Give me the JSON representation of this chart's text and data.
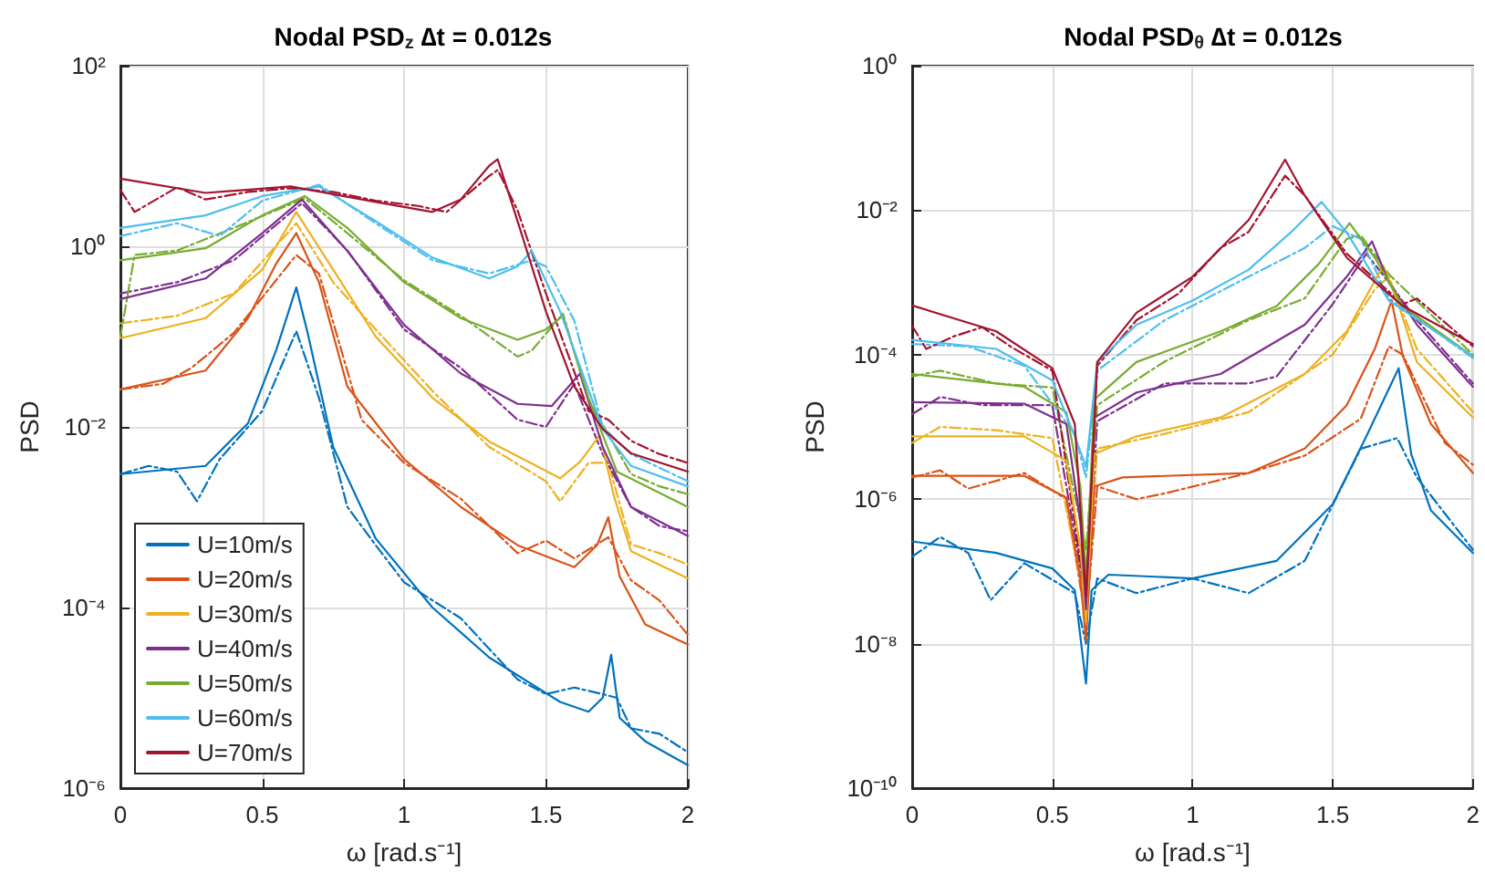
{
  "chart_data": [
    {
      "type": "line",
      "title": "Nodal PSD$_{z}$ ∆t = 0.012s",
      "xlabel": "ω [rad.s⁻¹]",
      "ylabel": "PSD",
      "log": "y",
      "grid": true,
      "legend": "bottom left",
      "marker": "none",
      "xlim": [
        0,
        2
      ],
      "xticks": [
        0,
        0.5,
        1,
        1.5,
        2
      ],
      "ylim": [
        1e-06,
        100
      ],
      "yticks": [
        {
          "value": 1e-06,
          "label": "10⁻⁶"
        },
        {
          "value": 0.0001,
          "label": "10⁻⁴"
        },
        {
          "value": 0.01,
          "label": "10⁻²"
        },
        {
          "value": 1,
          "label": "10⁰"
        },
        {
          "value": 100,
          "label": "10²"
        }
      ],
      "series": [
        {
          "name": "U=10m/s",
          "color": "#0072bd",
          "line_style": "solid",
          "x": [
            0,
            0.3,
            0.45,
            0.55,
            0.62,
            0.66,
            0.75,
            0.9,
            1.1,
            1.3,
            1.55,
            1.65,
            1.7,
            1.73,
            1.76,
            1.85,
            2
          ],
          "values": [
            0.003,
            0.0037,
            0.011,
            0.072,
            0.35,
            0.11,
            0.006,
            0.00058,
            0.0001,
            2.8e-05,
            9e-06,
            7e-06,
            1e-05,
            3e-05,
            6e-06,
            3.3e-06,
            1.8e-06
          ]
        },
        {
          "name": "U=20m/s",
          "color": "#d95319",
          "line_style": "solid",
          "x": [
            0,
            0.3,
            0.45,
            0.55,
            0.62,
            0.7,
            0.8,
            1.0,
            1.2,
            1.4,
            1.6,
            1.68,
            1.72,
            1.76,
            1.85,
            2
          ],
          "values": [
            0.026,
            0.042,
            0.16,
            0.65,
            1.4,
            0.4,
            0.028,
            0.0044,
            0.0013,
            0.00049,
            0.00028,
            0.00049,
            0.001,
            0.00022,
            6.5e-05,
            3.9e-05
          ]
        },
        {
          "name": "U=30m/s",
          "color": "#edb120",
          "line_style": "solid",
          "x": [
            0,
            0.3,
            0.5,
            0.62,
            0.75,
            0.9,
            1.1,
            1.3,
            1.55,
            1.62,
            1.69,
            1.74,
            1.8,
            2
          ],
          "values": [
            0.096,
            0.16,
            0.55,
            2.4,
            0.55,
            0.1,
            0.021,
            0.0069,
            0.0027,
            0.0041,
            0.0081,
            0.0017,
            0.00042,
            0.00021
          ]
        },
        {
          "name": "U=40m/s",
          "color": "#7e2f8e",
          "line_style": "solid",
          "x": [
            0,
            0.3,
            0.5,
            0.64,
            0.8,
            1.0,
            1.2,
            1.4,
            1.52,
            1.62,
            1.7,
            1.8,
            2
          ],
          "values": [
            0.26,
            0.44,
            1.4,
            3.3,
            0.89,
            0.135,
            0.039,
            0.018,
            0.017,
            0.039,
            0.006,
            0.0013,
            0.00062
          ]
        },
        {
          "name": "U=50m/s",
          "color": "#77ac30",
          "line_style": "solid",
          "x": [
            0,
            0.3,
            0.5,
            0.65,
            0.8,
            1.0,
            1.2,
            1.4,
            1.5,
            1.56,
            1.65,
            1.75,
            2
          ],
          "values": [
            0.7,
            0.95,
            2.2,
            3.6,
            1.6,
            0.4,
            0.16,
            0.092,
            0.12,
            0.17,
            0.021,
            0.0032,
            0.0013
          ]
        },
        {
          "name": "U=60m/s",
          "color": "#4dbeee",
          "line_style": "solid",
          "x": [
            0,
            0.3,
            0.5,
            0.7,
            0.9,
            1.1,
            1.3,
            1.4,
            1.45,
            1.55,
            1.7,
            1.8,
            2
          ],
          "values": [
            1.6,
            2.2,
            3.6,
            4.6,
            1.9,
            0.75,
            0.44,
            0.6,
            0.89,
            0.19,
            0.0095,
            0.0037,
            0.0022
          ]
        },
        {
          "name": "U=70m/s",
          "color": "#a2142f",
          "line_style": "solid",
          "x": [
            0,
            0.3,
            0.6,
            0.9,
            1.1,
            1.2,
            1.3,
            1.33,
            1.4,
            1.5,
            1.6,
            1.7,
            1.8,
            2
          ],
          "values": [
            5.6,
            3.9,
            4.6,
            3.1,
            2.4,
            3.3,
            7.8,
            9.2,
            1.9,
            0.19,
            0.028,
            0.0095,
            0.0051,
            0.0032
          ]
        },
        {
          "color": "#0072bd",
          "line_style": "dashed",
          "x": [
            0,
            0.1,
            0.2,
            0.27,
            0.35,
            0.5,
            0.62,
            0.7,
            0.8,
            0.9,
            1.0,
            1.2,
            1.4,
            1.5,
            1.6,
            1.7,
            1.75,
            1.8,
            1.9,
            2
          ],
          "values": [
            0.003,
            0.0037,
            0.0032,
            0.0015,
            0.0044,
            0.015,
            0.115,
            0.021,
            0.0013,
            0.00049,
            0.00019,
            7.6e-05,
            1.6e-05,
            1.1e-05,
            1.3e-05,
            1.1e-05,
            1e-05,
            4.6e-06,
            4e-06,
            2.5e-06
          ]
        },
        {
          "color": "#d95319",
          "line_style": "dashed",
          "x": [
            0,
            0.15,
            0.25,
            0.4,
            0.62,
            0.7,
            0.85,
            1.0,
            1.2,
            1.4,
            1.5,
            1.6,
            1.72,
            1.8,
            1.9,
            2
          ],
          "values": [
            0.026,
            0.03,
            0.045,
            0.11,
            0.8,
            0.5,
            0.012,
            0.004,
            0.0016,
            0.0004,
            0.00055,
            0.00035,
            0.0006,
            0.0002,
            0.00012,
            5e-05
          ]
        },
        {
          "color": "#edb120",
          "line_style": "dashed",
          "x": [
            0,
            0.2,
            0.4,
            0.62,
            0.75,
            0.9,
            1.1,
            1.3,
            1.5,
            1.55,
            1.65,
            1.72,
            1.8,
            1.9,
            2
          ],
          "values": [
            0.14,
            0.17,
            0.3,
            1.8,
            0.4,
            0.12,
            0.025,
            0.006,
            0.0025,
            0.0015,
            0.004,
            0.004,
            0.0005,
            0.0004,
            0.0003
          ]
        },
        {
          "color": "#7e2f8e",
          "line_style": "dashed",
          "x": [
            0,
            0.2,
            0.4,
            0.64,
            0.8,
            1.0,
            1.2,
            1.4,
            1.5,
            1.6,
            1.7,
            1.8,
            1.9,
            2
          ],
          "values": [
            0.3,
            0.4,
            0.7,
            3.0,
            0.9,
            0.12,
            0.045,
            0.012,
            0.01,
            0.03,
            0.005,
            0.0013,
            0.0008,
            0.0007
          ]
        },
        {
          "color": "#77ac30",
          "line_style": "dashed",
          "x": [
            0,
            0.05,
            0.2,
            0.4,
            0.65,
            0.8,
            1.0,
            1.2,
            1.4,
            1.45,
            1.56,
            1.65,
            1.8,
            1.9,
            2
          ],
          "values": [
            0.1,
            0.8,
            0.9,
            1.6,
            3.4,
            1.4,
            0.42,
            0.17,
            0.06,
            0.07,
            0.18,
            0.02,
            0.003,
            0.0022,
            0.0018
          ]
        },
        {
          "color": "#4dbeee",
          "line_style": "dashed",
          "x": [
            0,
            0.2,
            0.35,
            0.5,
            0.7,
            0.9,
            1.1,
            1.3,
            1.45,
            1.5,
            1.6,
            1.7,
            1.8,
            2
          ],
          "values": [
            1.3,
            1.8,
            1.3,
            3.2,
            4.8,
            1.8,
            0.7,
            0.5,
            0.7,
            0.6,
            0.15,
            0.01,
            0.005,
            0.0025
          ]
        },
        {
          "color": "#a2142f",
          "line_style": "dashed",
          "x": [
            0,
            0.05,
            0.2,
            0.3,
            0.45,
            0.6,
            0.75,
            0.9,
            1.05,
            1.15,
            1.3,
            1.33,
            1.4,
            1.5,
            1.65,
            1.72,
            1.8,
            1.9,
            2
          ],
          "values": [
            4.2,
            2.4,
            4.5,
            3.3,
            4.0,
            4.4,
            4.0,
            3.2,
            2.8,
            2.4,
            6.0,
            7.0,
            2.5,
            0.3,
            0.015,
            0.012,
            0.007,
            0.005,
            0.004
          ]
        }
      ]
    },
    {
      "type": "line",
      "title": "Nodal PSD$_{θ}$ ∆t = 0.012s",
      "xlabel": "ω [rad.s⁻¹]",
      "ylabel": "PSD",
      "log": "y",
      "grid": true,
      "marker": "none",
      "xlim": [
        0,
        2
      ],
      "xticks": [
        0,
        0.5,
        1,
        1.5,
        2
      ],
      "ylim": [
        1e-10,
        1
      ],
      "yticks": [
        {
          "value": 1e-10,
          "label": "10⁻¹⁰"
        },
        {
          "value": 1e-08,
          "label": "10⁻⁸"
        },
        {
          "value": 1e-06,
          "label": "10⁻⁶"
        },
        {
          "value": 0.0001,
          "label": "10⁻⁴"
        },
        {
          "value": 0.01,
          "label": "10⁻²"
        },
        {
          "value": 1,
          "label": "10⁰"
        }
      ],
      "series": [
        {
          "color": "#0072bd",
          "line_style": "solid",
          "x": [
            0,
            0.3,
            0.5,
            0.58,
            0.62,
            0.64,
            0.7,
            1.0,
            1.3,
            1.5,
            1.62,
            1.735,
            1.78,
            1.85,
            2
          ],
          "values": [
            2.6e-07,
            1.8e-07,
            1.1e-07,
            5.5e-08,
            2.8e-09,
            5.5e-08,
            9e-08,
            8e-08,
            1.4e-07,
            8.5e-07,
            7.4e-06,
            6.5e-05,
            4.2e-06,
            7e-07,
            1.8e-07
          ]
        },
        {
          "color": "#d95319",
          "line_style": "solid",
          "x": [
            0,
            0.4,
            0.55,
            0.6,
            0.62,
            0.65,
            0.75,
            1.2,
            1.4,
            1.55,
            1.65,
            1.71,
            1.75,
            1.85,
            2
          ],
          "values": [
            2.1e-06,
            2.1e-06,
            1.05e-06,
            8e-08,
            1.1e-08,
            1.5e-06,
            2e-06,
            2.3e-06,
            5e-06,
            2e-05,
            0.00012,
            0.00056,
            9.5e-05,
            1.1e-05,
            2.3e-06
          ]
        },
        {
          "color": "#edb120",
          "line_style": "solid",
          "x": [
            0,
            0.4,
            0.55,
            0.6,
            0.62,
            0.65,
            0.8,
            1.1,
            1.4,
            1.55,
            1.68,
            1.73,
            1.8,
            2
          ],
          "values": [
            7.4e-06,
            7.4e-06,
            3.4e-06,
            2.1e-07,
            2e-08,
            4.2e-06,
            7.4e-06,
            1.35e-05,
            5.4e-05,
            0.00021,
            0.0017,
            0.00056,
            7.9e-05,
            1.35e-05
          ]
        },
        {
          "color": "#7e2f8e",
          "line_style": "solid",
          "x": [
            0,
            0.4,
            0.55,
            0.6,
            0.62,
            0.65,
            0.8,
            1.1,
            1.4,
            1.55,
            1.64,
            1.7,
            1.8,
            2
          ],
          "values": [
            2.2e-05,
            2.1e-05,
            1.1e-05,
            4.8e-07,
            3e-08,
            1.35e-05,
            3e-05,
            5.4e-05,
            0.00026,
            0.0012,
            0.0037,
            0.001,
            0.00026,
            3.6e-05
          ]
        },
        {
          "color": "#77ac30",
          "line_style": "solid",
          "x": [
            0,
            0.4,
            0.55,
            0.6,
            0.62,
            0.65,
            0.8,
            1.1,
            1.3,
            1.45,
            1.56,
            1.65,
            1.75,
            2
          ],
          "values": [
            5.4e-05,
            3.6e-05,
            1.6e-05,
            1.5e-06,
            8e-08,
            2.4e-05,
            7.9e-05,
            0.00021,
            0.00047,
            0.0018,
            0.0066,
            0.0022,
            0.00047,
            9.5e-05
          ]
        },
        {
          "color": "#4dbeee",
          "line_style": "solid",
          "x": [
            0,
            0.3,
            0.5,
            0.58,
            0.62,
            0.66,
            0.8,
            1.0,
            1.2,
            1.35,
            1.46,
            1.55,
            1.7,
            2
          ],
          "values": [
            0.00016,
            0.00012,
            4.4e-05,
            7.4e-06,
            2.8e-06,
            7.9e-05,
            0.00026,
            0.00056,
            0.0015,
            0.0049,
            0.013,
            0.0049,
            0.00056,
            9.5e-05
          ]
        },
        {
          "color": "#a2142f",
          "line_style": "solid",
          "x": [
            0,
            0.3,
            0.5,
            0.58,
            0.62,
            0.66,
            0.8,
            1.0,
            1.2,
            1.33,
            1.4,
            1.55,
            1.75,
            2
          ],
          "values": [
            0.00048,
            0.00021,
            6.5e-05,
            1.1e-05,
            4.5e-08,
            7.9e-05,
            0.00038,
            0.0012,
            0.0073,
            0.05,
            0.016,
            0.0022,
            0.00047,
            0.00014
          ]
        },
        {
          "color": "#0072bd",
          "line_style": "dashed",
          "x": [
            0,
            0.1,
            0.2,
            0.28,
            0.4,
            0.58,
            0.62,
            0.66,
            0.8,
            1.0,
            1.2,
            1.4,
            1.6,
            1.73,
            1.8,
            2
          ],
          "values": [
            1.6e-07,
            3e-07,
            1.8e-07,
            4e-08,
            1.3e-07,
            5e-08,
            1e-08,
            8e-08,
            5e-08,
            8e-08,
            5e-08,
            1.4e-07,
            5e-06,
            7e-06,
            2e-06,
            2e-07
          ]
        },
        {
          "color": "#d95319",
          "line_style": "dashed",
          "x": [
            0,
            0.1,
            0.2,
            0.4,
            0.55,
            0.62,
            0.66,
            0.8,
            0.9,
            1.2,
            1.4,
            1.6,
            1.7,
            1.75,
            1.9,
            2
          ],
          "values": [
            2e-06,
            2.5e-06,
            1.4e-06,
            2.3e-06,
            1e-06,
            2e-08,
            1.5e-06,
            1e-06,
            1.2e-06,
            2.3e-06,
            4e-06,
            1.3e-05,
            0.00013,
            0.0001,
            6e-06,
            3e-06
          ]
        },
        {
          "color": "#edb120",
          "line_style": "dashed",
          "x": [
            0,
            0.1,
            0.3,
            0.5,
            0.62,
            0.66,
            0.9,
            1.2,
            1.5,
            1.65,
            1.7,
            1.8,
            2
          ],
          "values": [
            6e-06,
            1e-05,
            9e-06,
            7e-06,
            3e-08,
            5e-06,
            8e-06,
            1.6e-05,
            0.0001,
            0.0008,
            0.0012,
            0.00012,
            1.6e-05
          ]
        },
        {
          "color": "#7e2f8e",
          "line_style": "dashed",
          "x": [
            0,
            0.1,
            0.25,
            0.5,
            0.62,
            0.66,
            0.9,
            1.2,
            1.3,
            1.5,
            1.62,
            1.7,
            1.8,
            2
          ],
          "values": [
            1.5e-05,
            2.6e-05,
            2e-05,
            2e-05,
            4e-08,
            1.2e-05,
            4e-05,
            4e-05,
            5e-05,
            0.0005,
            0.0025,
            0.001,
            0.0003,
            4e-05
          ]
        },
        {
          "color": "#77ac30",
          "line_style": "dashed",
          "x": [
            0,
            0.1,
            0.3,
            0.5,
            0.62,
            0.66,
            0.9,
            1.2,
            1.4,
            1.55,
            1.6,
            1.7,
            2
          ],
          "values": [
            5e-05,
            6e-05,
            4e-05,
            3.5e-05,
            2e-07,
            2e-05,
            8e-05,
            0.0003,
            0.0006,
            0.004,
            0.0045,
            0.0013,
            0.0001
          ]
        },
        {
          "color": "#4dbeee",
          "line_style": "dashed",
          "x": [
            0,
            0.2,
            0.4,
            0.58,
            0.62,
            0.66,
            0.9,
            1.2,
            1.4,
            1.5,
            1.6,
            1.7,
            2
          ],
          "values": [
            0.00014,
            0.00013,
            7e-05,
            8e-06,
            2e-06,
            6e-05,
            0.0003,
            0.0012,
            0.003,
            0.006,
            0.004,
            0.0006,
            9e-05
          ]
        },
        {
          "color": "#a2142f",
          "line_style": "dashed",
          "x": [
            0,
            0.05,
            0.15,
            0.25,
            0.35,
            0.5,
            0.62,
            0.66,
            0.8,
            0.95,
            1.1,
            1.2,
            1.33,
            1.4,
            1.55,
            1.75,
            1.8,
            2
          ],
          "values": [
            0.00025,
            0.00012,
            0.00018,
            0.00024,
            0.00013,
            6e-05,
            4e-08,
            7e-05,
            0.0003,
            0.0007,
            0.003,
            0.005,
            0.03,
            0.016,
            0.0025,
            0.0005,
            0.0006,
            0.00013
          ]
        }
      ]
    }
  ]
}
